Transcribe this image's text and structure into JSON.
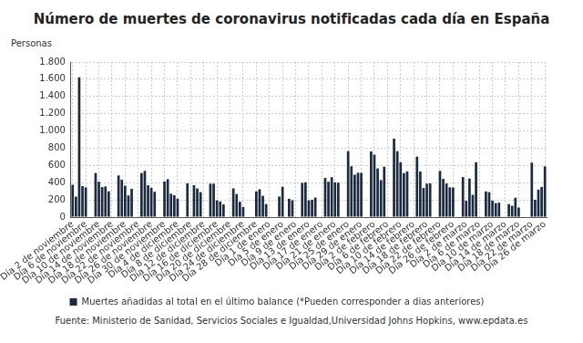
{
  "chart_data": {
    "type": "bar",
    "title": "Número de muertes de coronavirus notificadas cada día en España",
    "y_label": "Personas",
    "source": "Fuente: Ministerio de Sanidad, Servicios Sociales e Igualdad,Universidad Johns Hopkins, www.epdata.es",
    "categories": [
      "Día 2 de noviembre",
      null,
      null,
      null,
      "Día 6 de noviembre",
      null,
      null,
      null,
      "Día 10 de noviembre",
      null,
      null,
      null,
      "Día 14 de noviembre",
      null,
      null,
      null,
      "Día 18 de noviembre",
      null,
      null,
      null,
      "Día 22 de noviembre",
      null,
      null,
      null,
      "Día 26 de noviembre",
      null,
      null,
      null,
      "Día 30 de noviembre",
      null,
      null,
      null,
      "Día 4 de diciembre",
      null,
      null,
      null,
      "Día 8 de diciembre",
      null,
      null,
      null,
      "Día 12 de diciembre",
      null,
      null,
      null,
      "Día 16 de diciembre",
      null,
      null,
      null,
      "Día 20 de diciembre",
      null,
      null,
      null,
      "Día 24 de diciembre",
      null,
      null,
      null,
      "Día 28 de diciembre",
      null,
      null,
      null,
      "Día 1 de enero",
      null,
      null,
      null,
      "Día 5 de enero",
      null,
      null,
      null,
      "Día 9 de enero",
      null,
      null,
      null,
      "Día 13 de enero",
      null,
      null,
      null,
      "Día 17 de enero",
      null,
      null,
      null,
      "Día 21 de enero",
      null,
      null,
      null,
      "Día 25 de enero",
      null,
      null,
      null,
      "Día 29 de enero",
      null,
      null,
      null,
      "Día 2 de febrero",
      null,
      null,
      null,
      "Día 6 de febrero",
      null,
      null,
      null,
      "Día 10 de febrero",
      null,
      null,
      null,
      "Día 14 de febrero",
      null,
      null,
      null,
      "Día 18 de febrero",
      null,
      null,
      null,
      "Día 22 de febrero",
      null,
      null,
      null,
      "Día 26 de febrero",
      null,
      null,
      null,
      "Día 2 de marzo",
      null,
      null,
      null,
      "Día 6 de marzo",
      null,
      null,
      null,
      "Día 10 de marzo",
      null,
      null,
      null,
      "Día 14 de marzo",
      null,
      null,
      null,
      "Día 18 de marzo",
      null,
      null,
      null,
      "Día 22 de marzo",
      null,
      null,
      null,
      "Día 26 de marzo"
    ],
    "series": [
      {
        "name": "Muertes añadidas al total en el último balance (*Pueden corresponder a dias anteriores)",
        "color": "#1b2a3e",
        "values": [
          375,
          238,
          1623,
          360,
          345,
          null,
          null,
          512,
          411,
          349,
          356,
          300,
          null,
          null,
          484,
          435,
          365,
          252,
          328,
          null,
          null,
          512,
          537,
          370,
          340,
          294,
          null,
          null,
          413,
          440,
          272,
          254,
          214,
          null,
          null,
          393,
          null,
          371,
          333,
          290,
          null,
          null,
          388,
          388,
          195,
          181,
          148,
          null,
          null,
          334,
          268,
          178,
          118,
          null,
          null,
          null,
          298,
          323,
          247,
          152,
          null,
          null,
          null,
          239,
          352,
          null,
          213,
          196,
          null,
          null,
          398,
          405,
          195,
          201,
          227,
          null,
          null,
          455,
          410,
          464,
          404,
          400,
          null,
          null,
          766,
          591,
          492,
          515,
          513,
          null,
          null,
          762,
          724,
          565,
          430,
          585,
          null,
          null,
          911,
          766,
          636,
          511,
          531,
          null,
          null,
          702,
          530,
          339,
          388,
          392,
          null,
          null,
          537,
          444,
          390,
          346,
          343,
          null,
          null,
          465,
          190,
          448,
          259,
          636,
          null,
          null,
          299,
          290,
          192,
          163,
          168,
          null,
          null,
          152,
          131,
          225,
          112,
          null,
          null,
          null,
          632,
          202,
          320,
          350,
          589
        ]
      }
    ],
    "ylim": [
      0,
      1800
    ],
    "yticks": [
      0,
      200,
      400,
      600,
      800,
      {
        "value": 1000,
        "label": "1.000"
      },
      {
        "value": 1200,
        "label": "1.200"
      },
      {
        "value": 1400,
        "label": "1.400"
      },
      {
        "value": 1600,
        "label": "1.600"
      },
      {
        "value": 1800,
        "label": "1.800"
      }
    ],
    "grid": true,
    "legend": "bottom"
  }
}
